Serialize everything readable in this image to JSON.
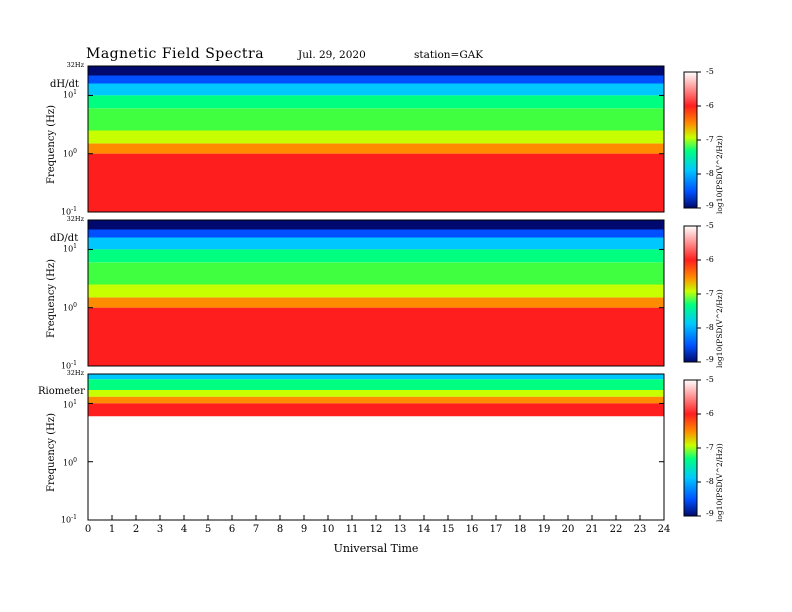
{
  "header": {
    "title": "Magnetic  Field  Spectra",
    "date": "Jul.  29, 2020",
    "station": "station=GAK"
  },
  "colors": {
    "background": "#ffffff",
    "scale": [
      "#000a6e",
      "#0050ff",
      "#00c8ff",
      "#00ff80",
      "#c8ff00",
      "#ff8c00",
      "#ff1e1e",
      "#ffffff"
    ]
  },
  "chart_data": [
    {
      "type": "heatmap",
      "panel_label": "dH/dt",
      "ylabel": "Frequency  (Hz)",
      "top_label": "32Hz",
      "y_ticks": [
        {
          "base": "10",
          "exp": "1"
        },
        {
          "base": "10",
          "exp": "0"
        },
        {
          "base": "10",
          "exp": "-1"
        }
      ],
      "yscale": "log",
      "ylim_hz": [
        0.1,
        32
      ],
      "xlim_ut": [
        0,
        24
      ],
      "colorbar": {
        "ticks": [
          "-5",
          "-6",
          "-7",
          "-8",
          "-9"
        ],
        "label": "log10(PSD(V^2/Hz))",
        "range": [
          -9,
          -5
        ]
      },
      "summary_log_psd": {
        "band_below_1hz": -6.0,
        "band_1_to_10hz": -7.2,
        "band_above_10hz": -8.5
      }
    },
    {
      "type": "heatmap",
      "panel_label": "dD/dt",
      "ylabel": "Frequency  (Hz)",
      "top_label": "32Hz",
      "y_ticks": [
        {
          "base": "10",
          "exp": "1"
        },
        {
          "base": "10",
          "exp": "0"
        },
        {
          "base": "10",
          "exp": "-1"
        }
      ],
      "yscale": "log",
      "ylim_hz": [
        0.1,
        32
      ],
      "xlim_ut": [
        0,
        24
      ],
      "colorbar": {
        "ticks": [
          "-5",
          "-6",
          "-7",
          "-8",
          "-9"
        ],
        "label": "log10(PSD(V^2/Hz))",
        "range": [
          -9,
          -5
        ]
      },
      "summary_log_psd": {
        "band_below_1hz": -6.2,
        "band_1_to_10hz": -7.4,
        "band_above_10hz": -8.6
      }
    },
    {
      "type": "heatmap",
      "panel_label": "Riometer",
      "ylabel": "Frequency  (Hz)",
      "top_label": "32Hz",
      "y_ticks": [
        {
          "base": "10",
          "exp": "1"
        },
        {
          "base": "10",
          "exp": "0"
        },
        {
          "base": "10",
          "exp": "-1"
        }
      ],
      "yscale": "log",
      "ylim_hz": [
        0.1,
        32
      ],
      "xlim_ut": [
        0,
        24
      ],
      "colorbar": {
        "ticks": [
          "-5",
          "-6",
          "-7",
          "-8",
          "-9"
        ],
        "label": "log10(PSD(V^2/Hz))",
        "range": [
          -9,
          -5
        ]
      },
      "summary_log_psd": {
        "band_below_5hz": -5.0,
        "band_5_to_15hz": -6.0,
        "band_above_15hz": -7.2
      }
    }
  ],
  "x_axis": {
    "label": "Universal  Time",
    "ticks": [
      "0",
      "1",
      "2",
      "3",
      "4",
      "5",
      "6",
      "7",
      "8",
      "9",
      "10",
      "11",
      "12",
      "13",
      "14",
      "15",
      "16",
      "17",
      "18",
      "19",
      "20",
      "21",
      "22",
      "23",
      "24"
    ]
  }
}
